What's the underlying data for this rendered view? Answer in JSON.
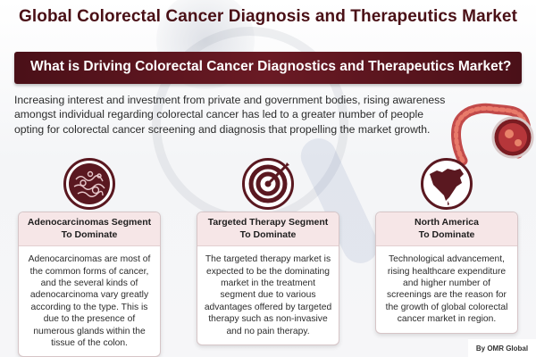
{
  "title": "Global Colorectal Cancer Diagnosis and Therapeutics Market",
  "banner": "What is Driving Colorectal Cancer Diagnostics and Therapeutics Market?",
  "intro": "Increasing interest and investment from private and government bodies, rising awareness amongst individual regarding colorectal cancer has led to a greater number of people opting for colorectal cancer screening and diagnosis that propelling the market growth.",
  "colors": {
    "maroon": "#5a1820",
    "banner": "#4a1018",
    "card_head": "#f6e6e7"
  },
  "cards": [
    {
      "icon": "cell-icon",
      "heading_line1": "Adenocarcinomas Segment",
      "heading_line2": "To Dominate",
      "body": "Adenocarcinomas are most of the common forms of cancer, and the several kinds of adenocarcinoma vary greatly according to the type. This is due to the presence of numerous glands within the tissue of the colon."
    },
    {
      "icon": "target-icon",
      "heading_line1": "Targeted Therapy Segment",
      "heading_line2": "To Dominate",
      "body": "The targeted therapy market is expected to be the dominating market in the treatment segment due to various advantages offered by targeted therapy such as non-invasive and no pain therapy."
    },
    {
      "icon": "north-america-map-icon",
      "heading_line1": "North America",
      "heading_line2": "To Dominate",
      "body": "Technological advancement, rising healthcare expenditure and higher number of screenings are the reason for the growth of global colorectal cancer market in region."
    }
  ],
  "footer": "By OMR Global"
}
